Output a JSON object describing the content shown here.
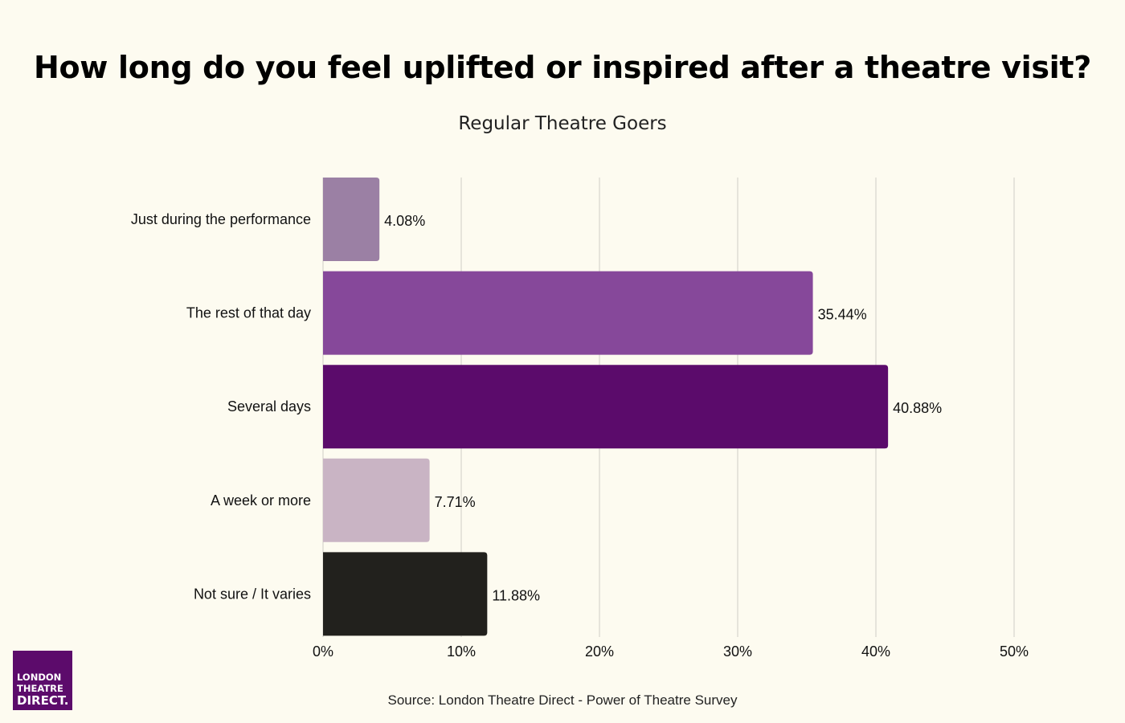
{
  "chart_data": {
    "type": "bar",
    "orientation": "horizontal",
    "title": "How long do you feel uplifted or inspired after a theatre visit?",
    "subtitle": "Regular Theatre Goers",
    "categories": [
      "Just during the performance",
      "The rest of that day",
      "Several days",
      "A week or more",
      "Not sure / It varies"
    ],
    "values": [
      4.08,
      35.44,
      40.88,
      7.71,
      11.88
    ],
    "value_labels": [
      "4.08%",
      "35.44%",
      "40.88%",
      "7.71%",
      "11.88%"
    ],
    "colors": [
      "#9b80a4",
      "#86489a",
      "#5b0b6b",
      "#c9b4c4",
      "#22211d"
    ],
    "xlim": [
      0,
      50
    ],
    "xticks": [
      0,
      10,
      20,
      30,
      40,
      50
    ],
    "xtick_labels": [
      "0%",
      "10%",
      "20%",
      "30%",
      "40%",
      "50%"
    ],
    "xlabel": "",
    "ylabel": "",
    "grid": "vertical",
    "legend": "none"
  },
  "source": "Source: London Theatre Direct - Power of Theatre Survey",
  "logo": {
    "line1": "LONDON",
    "line2": "THEATRE",
    "line3": "DIRECT."
  }
}
